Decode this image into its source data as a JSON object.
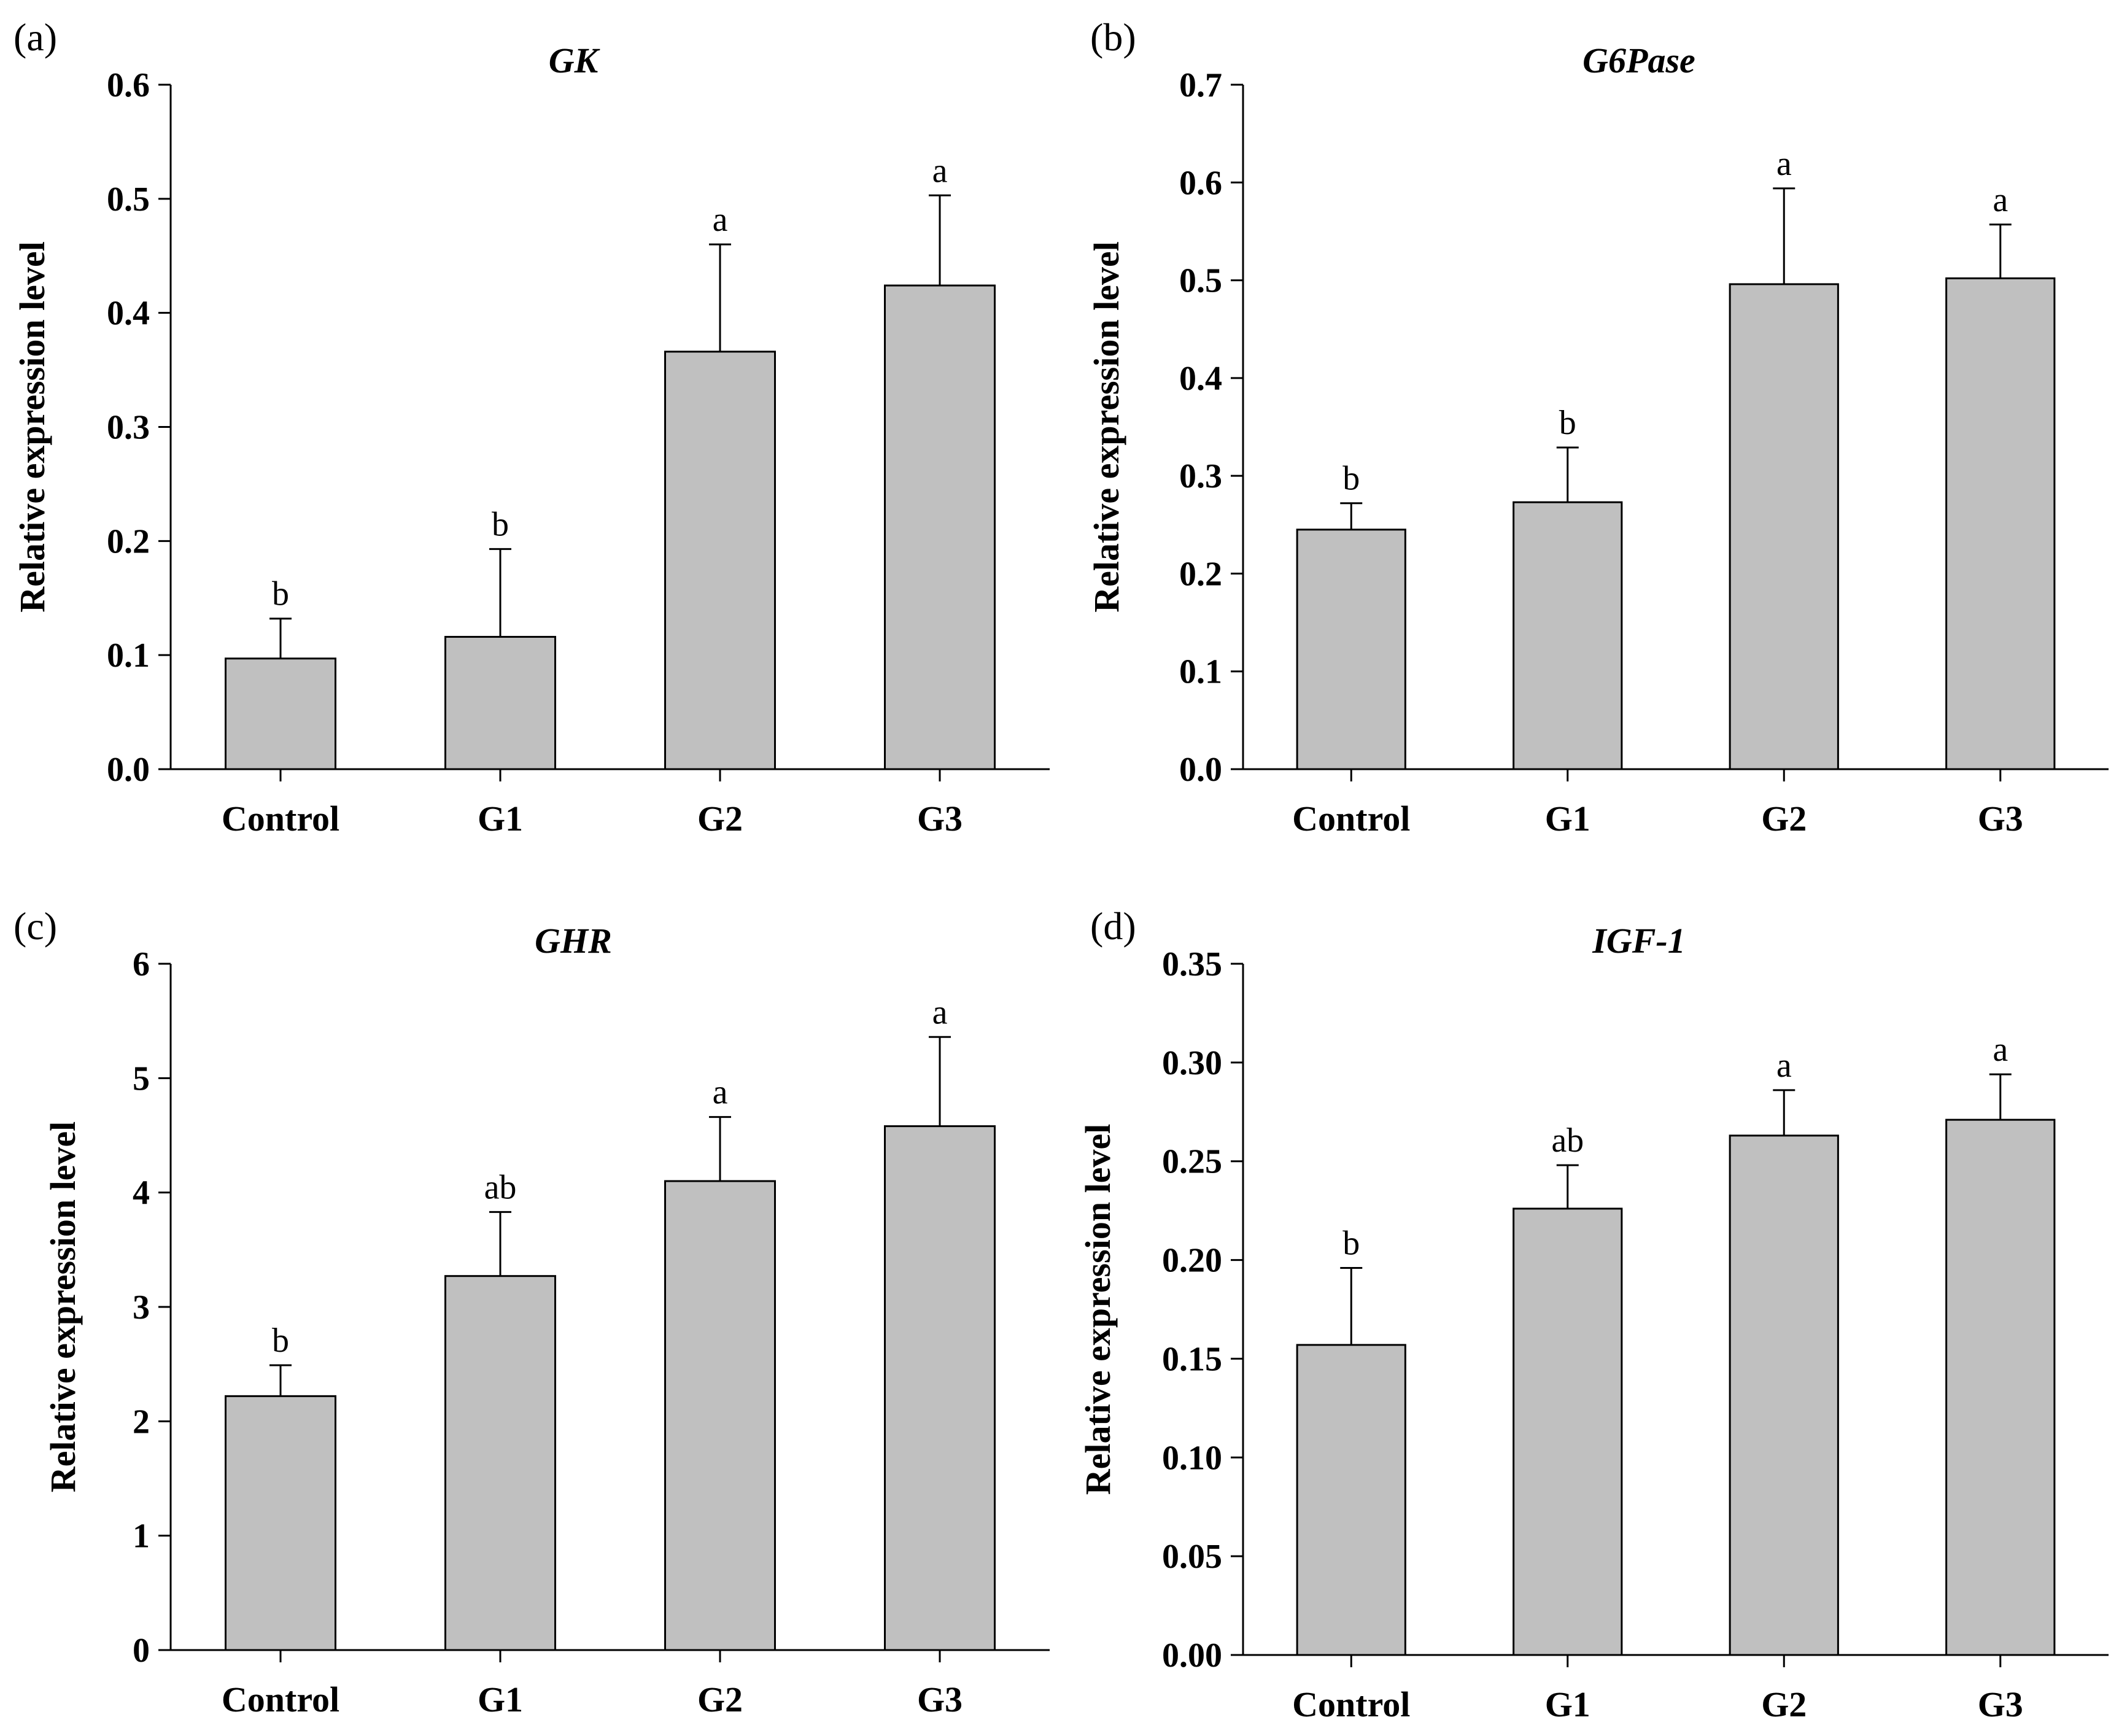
{
  "chart_data": [
    {
      "panel": "(a)",
      "type": "bar",
      "title": "GK",
      "ylabel": "Relative expression level",
      "xlabel": "",
      "categories": [
        "Control",
        "G1",
        "G2",
        "G3"
      ],
      "values": [
        0.097,
        0.116,
        0.366,
        0.424
      ],
      "errors": [
        0.035,
        0.077,
        0.094,
        0.079
      ],
      "significance": [
        "b",
        "b",
        "a",
        "a"
      ],
      "ylim": [
        0,
        0.6
      ],
      "yticks": [
        "0.0",
        "0.1",
        "0.2",
        "0.3",
        "0.4",
        "0.5",
        "0.6"
      ],
      "bar_color": "#c0c0c0",
      "grid": false
    },
    {
      "panel": "(b)",
      "type": "bar",
      "title": "G6Pase",
      "ylabel": "Relative expression level",
      "xlabel": "",
      "categories": [
        "Control",
        "G1",
        "G2",
        "G3"
      ],
      "values": [
        0.245,
        0.273,
        0.496,
        0.502
      ],
      "errors": [
        0.027,
        0.056,
        0.098,
        0.055
      ],
      "significance": [
        "b",
        "b",
        "a",
        "a"
      ],
      "ylim": [
        0,
        0.7
      ],
      "yticks": [
        "0.0",
        "0.1",
        "0.2",
        "0.3",
        "0.4",
        "0.5",
        "0.6",
        "0.7"
      ],
      "bar_color": "#c0c0c0",
      "grid": false
    },
    {
      "panel": "(c)",
      "type": "bar",
      "title": "GHR",
      "ylabel": "Relative expression level",
      "xlabel": "",
      "categories": [
        "Control",
        "G1",
        "G2",
        "G3"
      ],
      "values": [
        2.22,
        3.27,
        4.1,
        4.58
      ],
      "errors": [
        0.27,
        0.56,
        0.56,
        0.78
      ],
      "significance": [
        "b",
        "ab",
        "a",
        "a"
      ],
      "ylim": [
        0,
        6
      ],
      "yticks": [
        "0",
        "1",
        "2",
        "3",
        "4",
        "5",
        "6"
      ],
      "bar_color": "#c0c0c0",
      "grid": false
    },
    {
      "panel": "(d)",
      "type": "bar",
      "title": "IGF-1",
      "ylabel": "Relative expression level",
      "xlabel": "",
      "categories": [
        "Control",
        "G1",
        "G2",
        "G3"
      ],
      "values": [
        0.157,
        0.226,
        0.263,
        0.271
      ],
      "errors": [
        0.039,
        0.022,
        0.023,
        0.023
      ],
      "significance": [
        "b",
        "ab",
        "a",
        "a"
      ],
      "ylim": [
        0,
        0.35
      ],
      "yticks": [
        "0.00",
        "0.05",
        "0.10",
        "0.15",
        "0.20",
        "0.25",
        "0.30",
        "0.35"
      ],
      "bar_color": "#c0c0c0",
      "grid": false
    }
  ]
}
